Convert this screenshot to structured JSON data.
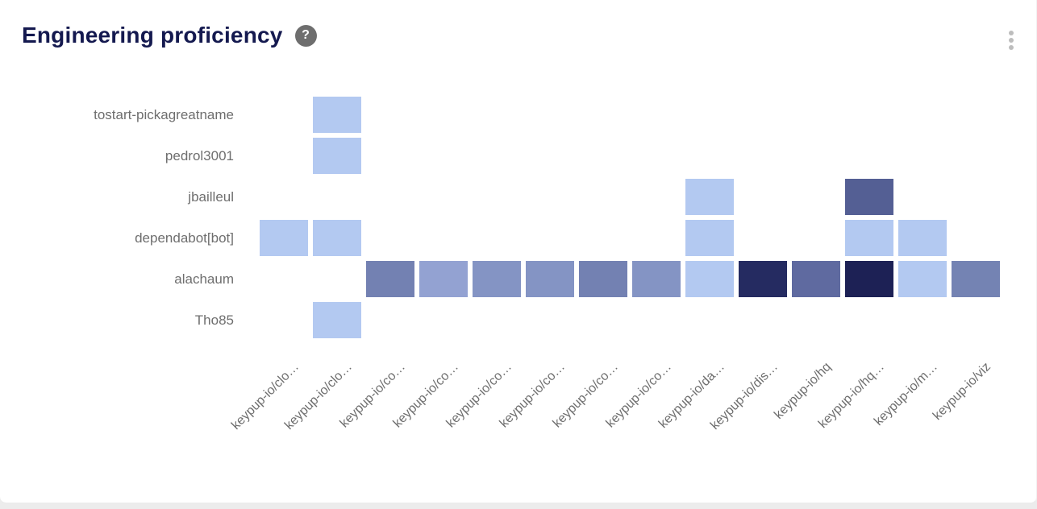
{
  "header": {
    "title": "Engineering proficiency",
    "help_label": "?"
  },
  "colors": {
    "page_bg": "#ececec",
    "card_bg": "#ffffff",
    "title_text": "#14194f",
    "axis_text": "#6e6e6e",
    "scale_min": "#b3c9f1",
    "scale_max": "#1d2155"
  },
  "chart_data": {
    "type": "heatmap",
    "title": "Engineering proficiency",
    "xlabel": "",
    "ylabel": "",
    "legend_position": "none",
    "grid": false,
    "rows": [
      "tostart-pickagreatname",
      "pedrol3001",
      "jbailleul",
      "dependabot[bot]",
      "alachaum",
      "Tho85"
    ],
    "columns": [
      "keypup-io/clo…",
      "keypup-io/clo…",
      "keypup-io/co…",
      "keypup-io/co…",
      "keypup-io/co…",
      "keypup-io/co…",
      "keypup-io/co…",
      "keypup-io/co…",
      "keypup-io/da…",
      "keypup-io/dis…",
      "keypup-io/hq",
      "keypup-io/hq…",
      "keypup-io/m…",
      "keypup-io/viz"
    ],
    "cells": [
      {
        "row": 0,
        "col": 1,
        "color": "#b3c9f1",
        "intensity": "low"
      },
      {
        "row": 1,
        "col": 1,
        "color": "#b3c9f1",
        "intensity": "low"
      },
      {
        "row": 2,
        "col": 8,
        "color": "#b3c9f1",
        "intensity": "low"
      },
      {
        "row": 2,
        "col": 11,
        "color": "#545f94",
        "intensity": "medium-high"
      },
      {
        "row": 3,
        "col": 0,
        "color": "#b3c9f1",
        "intensity": "low"
      },
      {
        "row": 3,
        "col": 1,
        "color": "#b3c9f1",
        "intensity": "low"
      },
      {
        "row": 3,
        "col": 8,
        "color": "#b3c9f1",
        "intensity": "low"
      },
      {
        "row": 3,
        "col": 11,
        "color": "#b3c9f1",
        "intensity": "low"
      },
      {
        "row": 3,
        "col": 12,
        "color": "#b3c9f1",
        "intensity": "low"
      },
      {
        "row": 4,
        "col": 2,
        "color": "#7381b2",
        "intensity": "medium"
      },
      {
        "row": 4,
        "col": 3,
        "color": "#93a2d2",
        "intensity": "low-medium"
      },
      {
        "row": 4,
        "col": 4,
        "color": "#8494c4",
        "intensity": "low-medium"
      },
      {
        "row": 4,
        "col": 5,
        "color": "#8494c4",
        "intensity": "low-medium"
      },
      {
        "row": 4,
        "col": 6,
        "color": "#7381b2",
        "intensity": "medium"
      },
      {
        "row": 4,
        "col": 7,
        "color": "#8494c4",
        "intensity": "low-medium"
      },
      {
        "row": 4,
        "col": 8,
        "color": "#b3c9f1",
        "intensity": "low"
      },
      {
        "row": 4,
        "col": 9,
        "color": "#252b61",
        "intensity": "high"
      },
      {
        "row": 4,
        "col": 10,
        "color": "#5f6aa0",
        "intensity": "medium"
      },
      {
        "row": 4,
        "col": 11,
        "color": "#1d2155",
        "intensity": "highest"
      },
      {
        "row": 4,
        "col": 12,
        "color": "#b3c9f1",
        "intensity": "low"
      },
      {
        "row": 4,
        "col": 13,
        "color": "#7483b3",
        "intensity": "medium"
      },
      {
        "row": 5,
        "col": 1,
        "color": "#b3c9f1",
        "intensity": "low"
      }
    ]
  }
}
